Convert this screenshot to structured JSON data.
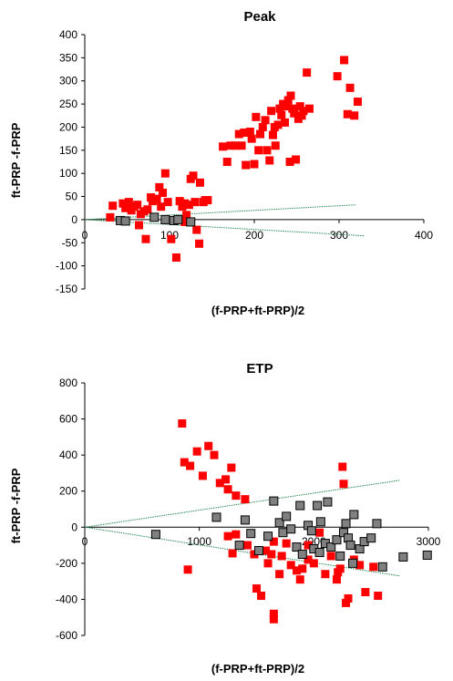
{
  "chart_data": [
    {
      "type": "scatter",
      "title": "Peak",
      "xlabel": "(f-PRP+ft-PRP)/2",
      "ylabel": "ft-PRP -f-PRP",
      "xlim": [
        0,
        400
      ],
      "ylim": [
        -150,
        400
      ],
      "xticks": [
        "0",
        "100",
        "200",
        "300",
        "400"
      ],
      "yticks": [
        "400",
        "350",
        "300",
        "250",
        "200",
        "150",
        "100",
        "50",
        "0",
        "-50",
        "-100",
        "-150"
      ],
      "xtick_values": [
        0,
        100,
        200,
        300,
        400
      ],
      "ytick_values": [
        400,
        350,
        300,
        250,
        200,
        150,
        100,
        50,
        0,
        -50,
        -100,
        -150
      ],
      "grid": false,
      "colors": {
        "red": "#ff0000",
        "gray": "#808080",
        "line": "#2e8b57"
      },
      "series": [
        {
          "color": "red",
          "points": [
            [
              30,
              5
            ],
            [
              33,
              30
            ],
            [
              45,
              35
            ],
            [
              48,
              25
            ],
            [
              52,
              38
            ],
            [
              55,
              20
            ],
            [
              58,
              28
            ],
            [
              62,
              32
            ],
            [
              66,
              12
            ],
            [
              70,
              18
            ],
            [
              74,
              22
            ],
            [
              78,
              48
            ],
            [
              80,
              40
            ],
            [
              85,
              45
            ],
            [
              88,
              70
            ],
            [
              90,
              28
            ],
            [
              92,
              58
            ],
            [
              95,
              100
            ],
            [
              98,
              38
            ],
            [
              102,
              -42
            ],
            [
              108,
              -82
            ],
            [
              112,
              40
            ],
            [
              115,
              28
            ],
            [
              118,
              35
            ],
            [
              120,
              10
            ],
            [
              123,
              32
            ],
            [
              125,
              88
            ],
            [
              128,
              95
            ],
            [
              130,
              38
            ],
            [
              132,
              -22
            ],
            [
              135,
              -52
            ],
            [
              136,
              80
            ],
            [
              140,
              38
            ],
            [
              142,
              42
            ],
            [
              145,
              42
            ],
            [
              72,
              -42
            ],
            [
              64,
              -12
            ],
            [
              118,
              -5
            ],
            [
              163,
              158
            ],
            [
              168,
              125
            ],
            [
              172,
              160
            ],
            [
              178,
              160
            ],
            [
              182,
              185
            ],
            [
              185,
              160
            ],
            [
              188,
              188
            ],
            [
              190,
              118
            ],
            [
              195,
              190
            ],
            [
              197,
              175
            ],
            [
              200,
              120
            ],
            [
              202,
              222
            ],
            [
              205,
              150
            ],
            [
              207,
              185
            ],
            [
              210,
              200
            ],
            [
              213,
              215
            ],
            [
              215,
              150
            ],
            [
              218,
              128
            ],
            [
              220,
              235
            ],
            [
              222,
              183
            ],
            [
              224,
              200
            ],
            [
              225,
              160
            ],
            [
              228,
              205
            ],
            [
              230,
              240
            ],
            [
              232,
              226
            ],
            [
              234,
              250
            ],
            [
              236,
              210
            ],
            [
              238,
              245
            ],
            [
              240,
              258
            ],
            [
              242,
              125
            ],
            [
              243,
              268
            ],
            [
              245,
              240
            ],
            [
              247,
              230
            ],
            [
              249,
              130
            ],
            [
              252,
              218
            ],
            [
              254,
              245
            ],
            [
              256,
              225
            ],
            [
              258,
              235
            ],
            [
              262,
              318
            ],
            [
              265,
              240
            ],
            [
              298,
              310
            ],
            [
              306,
              345
            ],
            [
              310,
              228
            ],
            [
              313,
              285
            ],
            [
              318,
              225
            ],
            [
              322,
              255
            ]
          ]
        },
        {
          "color": "gray",
          "points": [
            [
              42,
              -2
            ],
            [
              48,
              -3
            ],
            [
              95,
              0
            ],
            [
              105,
              -2
            ],
            [
              82,
              5
            ],
            [
              125,
              -5
            ],
            [
              110,
              0
            ]
          ]
        }
      ],
      "lines": [
        {
          "color": "line",
          "x": [
            0,
            320
          ],
          "y": [
            0,
            32
          ]
        },
        {
          "color": "line",
          "x": [
            0,
            330
          ],
          "y": [
            0,
            -35
          ]
        }
      ]
    },
    {
      "type": "scatter",
      "title": "ETP",
      "xlabel": "(f-PRP+ft-PRP)/2",
      "ylabel": "ft-PRP -f-PRP",
      "xlim": [
        0,
        3000
      ],
      "ylim": [
        -600,
        800
      ],
      "xticks": [
        "0",
        "1000",
        "2000",
        "3000"
      ],
      "yticks": [
        "800",
        "600",
        "400",
        "200",
        "0",
        "-200",
        "-400",
        "-600"
      ],
      "xtick_values": [
        0,
        1000,
        2000,
        3000
      ],
      "ytick_values": [
        800,
        600,
        400,
        200,
        0,
        -200,
        -400,
        -600
      ],
      "grid": false,
      "colors": {
        "red": "#ff0000",
        "gray": "#808080",
        "line": "#2e8b57"
      },
      "series": [
        {
          "color": "red",
          "points": [
            [
              850,
              575
            ],
            [
              900,
              -235
            ],
            [
              870,
              360
            ],
            [
              920,
              340
            ],
            [
              980,
              420
            ],
            [
              1030,
              285
            ],
            [
              1080,
              450
            ],
            [
              1130,
              400
            ],
            [
              1180,
              245
            ],
            [
              1230,
              265
            ],
            [
              1250,
              210
            ],
            [
              1280,
              330
            ],
            [
              1290,
              -145
            ],
            [
              1320,
              175
            ],
            [
              1400,
              155
            ],
            [
              1420,
              -100
            ],
            [
              1480,
              -150
            ],
            [
              1500,
              -340
            ],
            [
              1540,
              -380
            ],
            [
              1580,
              -130
            ],
            [
              1600,
              -200
            ],
            [
              1630,
              -150
            ],
            [
              1650,
              -510
            ],
            [
              1650,
              -480
            ],
            [
              1700,
              -260
            ],
            [
              1720,
              -160
            ],
            [
              1760,
              -90
            ],
            [
              1800,
              -210
            ],
            [
              1850,
              -240
            ],
            [
              1880,
              -290
            ],
            [
              1900,
              -230
            ],
            [
              1950,
              -100
            ],
            [
              2000,
              -200
            ],
            [
              2050,
              -30
            ],
            [
              2100,
              -260
            ],
            [
              2150,
              -160
            ],
            [
              2200,
              -290
            ],
            [
              2210,
              -250
            ],
            [
              2230,
              -230
            ],
            [
              2250,
              335
            ],
            [
              2260,
              240
            ],
            [
              2280,
              -420
            ],
            [
              2300,
              -395
            ],
            [
              2350,
              -180
            ],
            [
              2400,
              -210
            ],
            [
              2450,
              -360
            ],
            [
              2520,
              -220
            ],
            [
              2560,
              -380
            ],
            [
              1250,
              -50
            ],
            [
              1320,
              -40
            ],
            [
              1650,
              -80
            ],
            [
              1950,
              -180
            ]
          ]
        },
        {
          "color": "gray",
          "points": [
            [
              620,
              -40
            ],
            [
              1150,
              55
            ],
            [
              1350,
              -100
            ],
            [
              1400,
              40
            ],
            [
              1450,
              -35
            ],
            [
              1520,
              -130
            ],
            [
              1600,
              -50
            ],
            [
              1650,
              145
            ],
            [
              1700,
              25
            ],
            [
              1730,
              -30
            ],
            [
              1760,
              60
            ],
            [
              1800,
              -10
            ],
            [
              1850,
              -110
            ],
            [
              1880,
              120
            ],
            [
              1900,
              -150
            ],
            [
              1950,
              10
            ],
            [
              1980,
              -20
            ],
            [
              2000,
              -120
            ],
            [
              2030,
              120
            ],
            [
              2050,
              -140
            ],
            [
              2060,
              30
            ],
            [
              2100,
              -90
            ],
            [
              2120,
              140
            ],
            [
              2150,
              -110
            ],
            [
              2200,
              -70
            ],
            [
              2230,
              -160
            ],
            [
              2260,
              -30
            ],
            [
              2280,
              20
            ],
            [
              2300,
              -60
            ],
            [
              2320,
              -100
            ],
            [
              2340,
              -200
            ],
            [
              2350,
              70
            ],
            [
              2400,
              -120
            ],
            [
              2440,
              -80
            ],
            [
              2500,
              -60
            ],
            [
              2550,
              20
            ],
            [
              2600,
              -220
            ],
            [
              2780,
              -165
            ],
            [
              2990,
              -155
            ]
          ]
        }
      ],
      "lines": [
        {
          "color": "line",
          "x": [
            0,
            2750
          ],
          "y": [
            0,
            260
          ]
        },
        {
          "color": "line",
          "x": [
            0,
            2750
          ],
          "y": [
            0,
            -270
          ]
        }
      ]
    }
  ]
}
